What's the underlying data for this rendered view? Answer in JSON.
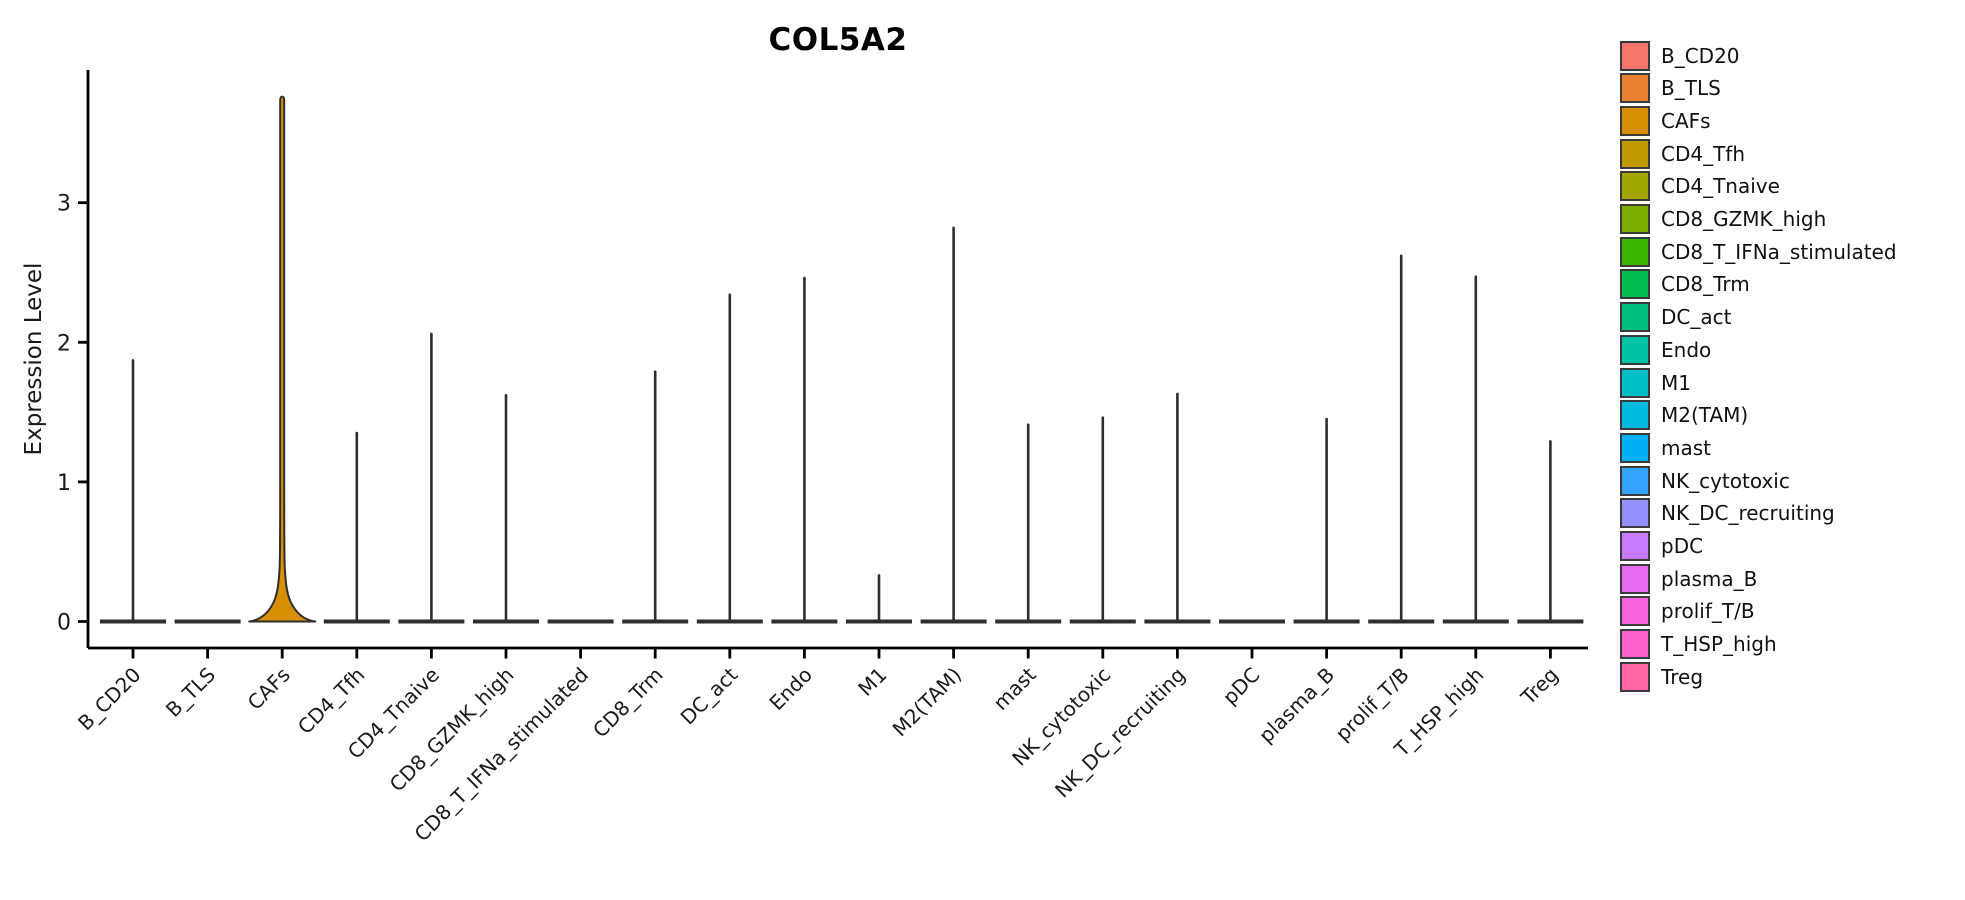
{
  "chart_data": {
    "type": "violin",
    "title": "COL5A2",
    "xlabel": "",
    "ylabel": "Expression Level",
    "ylim": [
      0,
      3.95
    ],
    "yticks": [
      0,
      1,
      2,
      3
    ],
    "grid": false,
    "legend_position": "right",
    "categories": [
      "B_CD20",
      "B_TLS",
      "CAFs",
      "CD4_Tfh",
      "CD4_Tnaive",
      "CD8_GZMK_high",
      "CD8_T_IFNa_stimulated",
      "CD8_Trm",
      "DC_act",
      "Endo",
      "M1",
      "M2(TAM)",
      "mast",
      "NK_cytotoxic",
      "NK_DC_recruiting",
      "pDC",
      "plasma_B",
      "prolif_T/B",
      "T_HSP_high",
      "Treg"
    ],
    "series": [
      {
        "name": "B_CD20",
        "color": "#F8766D",
        "max_expression": 1.87,
        "bulge": false
      },
      {
        "name": "B_TLS",
        "color": "#EA8331",
        "max_expression": 0,
        "bulge": false
      },
      {
        "name": "CAFs",
        "color": "#D89000",
        "max_expression": 3.76,
        "bulge": true
      },
      {
        "name": "CD4_Tfh",
        "color": "#C09B00",
        "max_expression": 1.35,
        "bulge": false
      },
      {
        "name": "CD4_Tnaive",
        "color": "#A3A500",
        "max_expression": 2.06,
        "bulge": false
      },
      {
        "name": "CD8_GZMK_high",
        "color": "#7CAE00",
        "max_expression": 1.62,
        "bulge": false
      },
      {
        "name": "CD8_T_IFNa_stimulated",
        "color": "#39B600",
        "max_expression": 0,
        "bulge": false
      },
      {
        "name": "CD8_Trm",
        "color": "#00BB4E",
        "max_expression": 1.79,
        "bulge": false
      },
      {
        "name": "DC_act",
        "color": "#00BF7D",
        "max_expression": 2.34,
        "bulge": false
      },
      {
        "name": "Endo",
        "color": "#00C1A3",
        "max_expression": 2.46,
        "bulge": false
      },
      {
        "name": "M1",
        "color": "#00BFC4",
        "max_expression": 0.33,
        "bulge": false
      },
      {
        "name": "M2(TAM)",
        "color": "#00BAE0",
        "max_expression": 2.82,
        "bulge": false
      },
      {
        "name": "mast",
        "color": "#00B0F6",
        "max_expression": 1.41,
        "bulge": false
      },
      {
        "name": "NK_cytotoxic",
        "color": "#35A2FF",
        "max_expression": 1.46,
        "bulge": false
      },
      {
        "name": "NK_DC_recruiting",
        "color": "#9590FF",
        "max_expression": 1.63,
        "bulge": false
      },
      {
        "name": "pDC",
        "color": "#C77CFF",
        "max_expression": 0,
        "bulge": false
      },
      {
        "name": "plasma_B",
        "color": "#E76BF3",
        "max_expression": 1.45,
        "bulge": false
      },
      {
        "name": "prolif_T/B",
        "color": "#FA62DB",
        "max_expression": 2.62,
        "bulge": false
      },
      {
        "name": "T_HSP_high",
        "color": "#FF61CC",
        "max_expression": 2.47,
        "bulge": false
      },
      {
        "name": "Treg",
        "color": "#FF67A4",
        "max_expression": 1.29,
        "bulge": false
      }
    ],
    "annotation": "Violins collapsed to a baseline bar at 0 with a thin spike up to the max expression; only CAFs shows a visible density bulge near 0.",
    "colors": {
      "violin_outline": "#2E2E2E",
      "axis": "#000000",
      "tick_text": "#1a1a1a",
      "background": "#ffffff"
    }
  }
}
